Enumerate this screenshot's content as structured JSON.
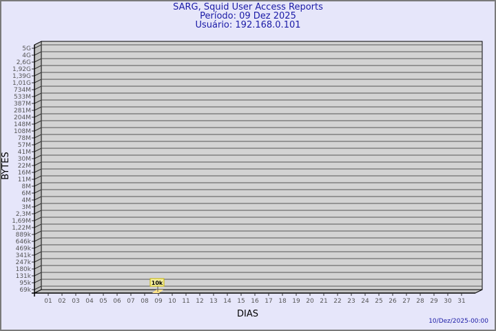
{
  "title": "SARG, Squid User Access Reports",
  "period": "Período: 09 Dez 2025",
  "user": "Usuário: 192.168.0.101",
  "footer": "10/Dez/2025-00:00",
  "colors": {
    "background": "#e6e6fa",
    "plot": "#d3d3d3",
    "bar": "#ffe38a",
    "label_box": "#f5f0a0",
    "title": "#1a1aa6"
  },
  "chart_data": {
    "type": "bar",
    "xlabel": "DIAS",
    "ylabel": "BYTES",
    "y_scale": "log",
    "y_ticks": [
      "5G",
      "4G",
      "2,6G",
      "1,92G",
      "1,39G",
      "1,01G",
      "734M",
      "533M",
      "387M",
      "281M",
      "204M",
      "148M",
      "108M",
      "78M",
      "57M",
      "41M",
      "30M",
      "22M",
      "16M",
      "11M",
      "8M",
      "6M",
      "4M",
      "3M",
      "2,3M",
      "1,69M",
      "1,22M",
      "889k",
      "646k",
      "469k",
      "341k",
      "247k",
      "180k",
      "131k",
      "95k",
      "69k"
    ],
    "categories": [
      "01",
      "02",
      "03",
      "04",
      "05",
      "06",
      "07",
      "08",
      "09",
      "10",
      "11",
      "12",
      "13",
      "14",
      "15",
      "16",
      "17",
      "18",
      "19",
      "20",
      "21",
      "22",
      "23",
      "24",
      "25",
      "26",
      "27",
      "28",
      "29",
      "30",
      "31"
    ],
    "series": [
      {
        "values": [
          0,
          0,
          0,
          0,
          0,
          0,
          0,
          0,
          10000,
          0,
          0,
          0,
          0,
          0,
          0,
          0,
          0,
          0,
          0,
          0,
          0,
          0,
          0,
          0,
          0,
          0,
          0,
          0,
          0,
          0,
          0
        ]
      }
    ],
    "data_labels": {
      "09": "10k"
    },
    "grid": true
  }
}
